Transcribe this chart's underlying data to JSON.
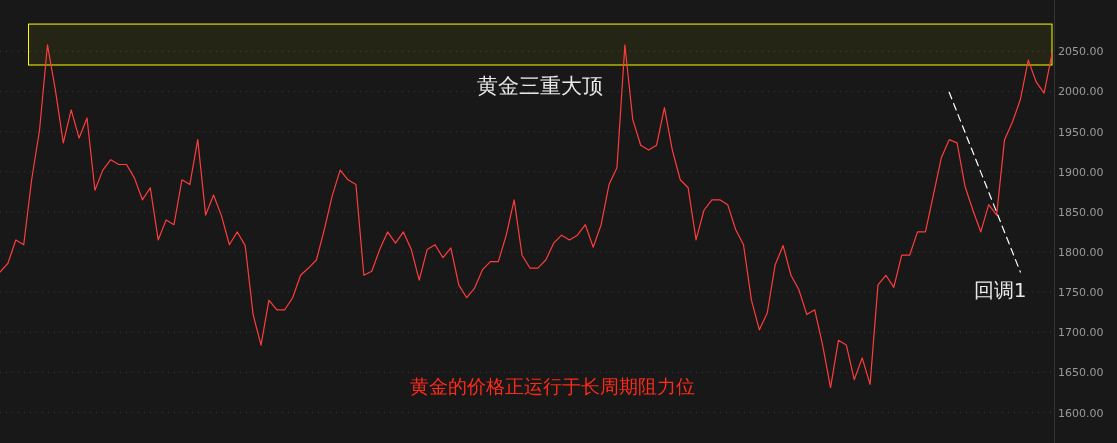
{
  "chart_data": {
    "type": "line",
    "categories": [
      null,
      null,
      null,
      null,
      null,
      null,
      null,
      null,
      null,
      null,
      null,
      null,
      null,
      null,
      null,
      null,
      null,
      null,
      null,
      null,
      null,
      null,
      null,
      null,
      null,
      null,
      null,
      null,
      null,
      null,
      null,
      null,
      null,
      null,
      null,
      null,
      null,
      null,
      null,
      null,
      null,
      null,
      null,
      null,
      null,
      null,
      null,
      null,
      null,
      null,
      null,
      null,
      null,
      null,
      null,
      null,
      null,
      null,
      null,
      null,
      null,
      null,
      null,
      null,
      null,
      null,
      null,
      null,
      null,
      null,
      null,
      null,
      null,
      null,
      null,
      null,
      null,
      null,
      null,
      null,
      null,
      null,
      null,
      null,
      null,
      null,
      null,
      null,
      null,
      null,
      null,
      null,
      null,
      null,
      null,
      null,
      null,
      null,
      null,
      null,
      null,
      null,
      null,
      null,
      null,
      null,
      null,
      null,
      null,
      null,
      null,
      null,
      null,
      null,
      null,
      null,
      null,
      null,
      null,
      null,
      null,
      null,
      null,
      null,
      null,
      null,
      null,
      null,
      null,
      null,
      null,
      null,
      null,
      null
    ],
    "series": [
      {
        "color": "#ff3c3c",
        "values": [
          1775,
          1786,
          1815,
          1809,
          1890,
          1952,
          2058,
          2002,
          1936,
          1977,
          1942,
          1967,
          1877,
          1902,
          1915,
          1909,
          1909,
          1892,
          1865,
          1880,
          1815,
          1840,
          1834,
          1890,
          1884,
          1940,
          1846,
          1871,
          1845,
          1809,
          1825,
          1808,
          1722,
          1684,
          1740,
          1728,
          1728,
          1743,
          1771,
          1780,
          1790,
          1828,
          1870,
          1902,
          1890,
          1884,
          1771,
          1776,
          1803,
          1825,
          1811,
          1825,
          1803,
          1765,
          1803,
          1809,
          1793,
          1805,
          1759,
          1743,
          1755,
          1778,
          1788,
          1788,
          1821,
          1865,
          1796,
          1780,
          1780,
          1790,
          1811,
          1821,
          1815,
          1821,
          1834,
          1806,
          1834,
          1884,
          1905,
          2058,
          1965,
          1933,
          1927,
          1933,
          1980,
          1927,
          1890,
          1880,
          1815,
          1852,
          1865,
          1865,
          1859,
          1828,
          1809,
          1740,
          1703,
          1724,
          1784,
          1808,
          1771,
          1753,
          1722,
          1728,
          1684,
          1631,
          1690,
          1684,
          1641,
          1668,
          1635,
          1759,
          1771,
          1756,
          1796,
          1796,
          1825,
          1825,
          1871,
          1917,
          1940,
          1936,
          1882,
          1852,
          1825,
          1859,
          1846,
          1940,
          1962,
          1990,
          2039,
          2012,
          1998,
          2047
        ]
      },
      {
        "type": "line",
        "color": "#ffffff",
        "line_style": "dashed",
        "values": [
          null,
          null,
          null,
          null,
          null,
          null,
          null,
          null,
          null,
          null,
          null,
          null,
          null,
          null,
          null,
          null,
          null,
          null,
          null,
          null,
          null,
          null,
          null,
          null,
          null,
          null,
          null,
          null,
          null,
          null,
          null,
          null,
          null,
          null,
          null,
          null,
          null,
          null,
          null,
          null,
          null,
          null,
          null,
          null,
          null,
          null,
          null,
          null,
          null,
          null,
          null,
          null,
          null,
          null,
          null,
          null,
          null,
          null,
          null,
          null,
          null,
          null,
          null,
          null,
          null,
          null,
          null,
          null,
          null,
          null,
          null,
          null,
          null,
          null,
          null,
          null,
          null,
          null,
          null,
          null,
          null,
          null,
          null,
          null,
          null,
          null,
          null,
          null,
          null,
          null,
          null,
          null,
          null,
          null,
          null,
          null,
          null,
          null,
          null,
          null,
          null,
          null,
          null,
          null,
          null,
          null,
          null,
          null,
          null,
          null,
          null,
          null,
          null,
          null,
          null,
          null,
          null,
          null,
          null,
          null,
          1999,
          null,
          null,
          null,
          null,
          null,
          null,
          null,
          null,
          1775,
          null,
          null,
          null,
          null
        ]
      }
    ],
    "ylim": [
      1562,
      2114
    ],
    "yticks": [
      {
        "value": 1600,
        "label": "1600.00"
      },
      {
        "value": 1650,
        "label": "1650.00"
      },
      {
        "value": 1700,
        "label": "1700.00"
      },
      {
        "value": 1750,
        "label": "1750.00"
      },
      {
        "value": 1800,
        "label": "1800.00"
      },
      {
        "value": 1850,
        "label": "1850.00"
      },
      {
        "value": 1900,
        "label": "1900.00"
      },
      {
        "value": 1950,
        "label": "1950.00"
      },
      {
        "value": 2000,
        "label": "2000.00"
      },
      {
        "value": 2050,
        "label": "2050.00"
      }
    ],
    "tick_labels": "y",
    "grid": "y",
    "bands": [
      {
        "axis": "y",
        "from": 2033,
        "to": 2084,
        "label": "黄金三重大顶",
        "color": "#ffff00"
      }
    ],
    "annotations": [
      "回调1",
      "黄金的价格正运行于长周期阻力位"
    ]
  }
}
